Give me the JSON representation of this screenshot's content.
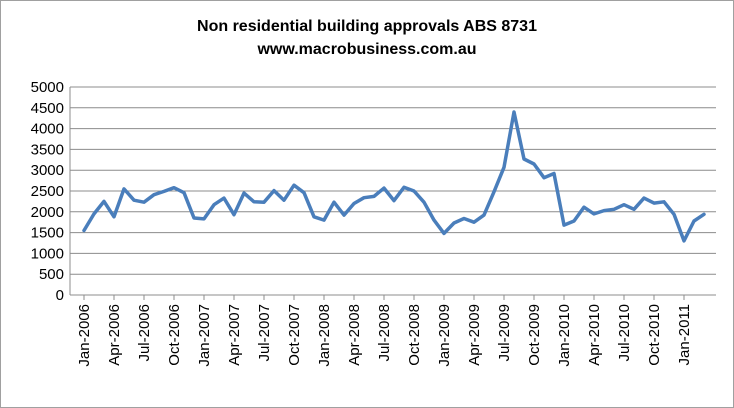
{
  "chart_data": {
    "type": "line",
    "title": "Non residential building approvals ABS 8731",
    "subtitle": "www.macrobusiness.com.au",
    "xlabel": "",
    "ylabel": "",
    "ylim": [
      0,
      5000
    ],
    "yticks": [
      0,
      500,
      1000,
      1500,
      2000,
      2500,
      3000,
      3500,
      4000,
      4500,
      5000
    ],
    "grid": "horizontal",
    "legend": "none",
    "line_color": "#4a7ebb",
    "x_tick_labels": [
      "Jan-2006",
      "Apr-2006",
      "Jul-2006",
      "Oct-2006",
      "Jan-2007",
      "Apr-2007",
      "Jul-2007",
      "Oct-2007",
      "Jan-2008",
      "Apr-2008",
      "Jul-2008",
      "Oct-2008",
      "Jan-2009",
      "Apr-2009",
      "Jul-2009",
      "Oct-2009",
      "Jan-2010",
      "Apr-2010",
      "Jul-2010",
      "Oct-2010",
      "Jan-2011"
    ],
    "x": [
      "Jan-2006",
      "Feb-2006",
      "Mar-2006",
      "Apr-2006",
      "May-2006",
      "Jun-2006",
      "Jul-2006",
      "Aug-2006",
      "Sep-2006",
      "Oct-2006",
      "Nov-2006",
      "Dec-2006",
      "Jan-2007",
      "Feb-2007",
      "Mar-2007",
      "Apr-2007",
      "May-2007",
      "Jun-2007",
      "Jul-2007",
      "Aug-2007",
      "Sep-2007",
      "Oct-2007",
      "Nov-2007",
      "Dec-2007",
      "Jan-2008",
      "Feb-2008",
      "Mar-2008",
      "Apr-2008",
      "May-2008",
      "Jun-2008",
      "Jul-2008",
      "Aug-2008",
      "Sep-2008",
      "Oct-2008",
      "Nov-2008",
      "Dec-2008",
      "Jan-2009",
      "Feb-2009",
      "Mar-2009",
      "Apr-2009",
      "May-2009",
      "Jun-2009",
      "Jul-2009",
      "Aug-2009",
      "Sep-2009",
      "Oct-2009",
      "Nov-2009",
      "Dec-2009",
      "Jan-2010",
      "Feb-2010",
      "Mar-2010",
      "Apr-2010",
      "May-2010",
      "Jun-2010",
      "Jul-2010",
      "Aug-2010",
      "Sep-2010",
      "Oct-2010",
      "Nov-2010",
      "Dec-2010",
      "Jan-2011",
      "Feb-2011",
      "Mar-2011"
    ],
    "values": [
      1550,
      1950,
      2250,
      1880,
      2550,
      2280,
      2230,
      2410,
      2490,
      2580,
      2460,
      1850,
      1830,
      2170,
      2330,
      1930,
      2450,
      2240,
      2230,
      2510,
      2280,
      2640,
      2460,
      1880,
      1800,
      2230,
      1920,
      2200,
      2340,
      2370,
      2570,
      2270,
      2590,
      2500,
      2230,
      1800,
      1480,
      1730,
      1840,
      1750,
      1920,
      2480,
      3070,
      4400,
      3270,
      3150,
      2820,
      2920,
      1680,
      1780,
      2110,
      1950,
      2030,
      2060,
      2170,
      2060,
      2330,
      2210,
      2240,
      1940,
      1300,
      1780,
      1940
    ]
  }
}
